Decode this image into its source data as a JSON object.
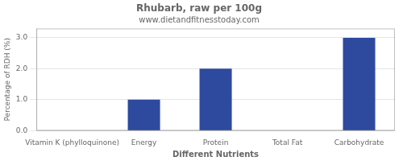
{
  "chart_data": {
    "type": "bar",
    "title": "Rhubarb, raw per 100g",
    "subtitle": "www.dietandfitnesstoday.com",
    "xlabel": "Different Nutrients",
    "ylabel": "Percentage of RDH (%)",
    "categories": [
      "Vitamin K (phylloquinone)",
      "Energy",
      "Protein",
      "Total Fat",
      "Carbohydrate"
    ],
    "values": [
      0.0,
      1.0,
      2.0,
      0.0,
      3.0
    ],
    "color": "#2e4a9e",
    "ylim": [
      0,
      3.3
    ],
    "yticks": [
      {
        "value": 0.0,
        "label": "0.0"
      },
      {
        "value": 1.0,
        "label": "1.0"
      },
      {
        "value": 2.0,
        "label": "2.0"
      },
      {
        "value": 3.0,
        "label": "3.0"
      }
    ],
    "grid": true
  }
}
